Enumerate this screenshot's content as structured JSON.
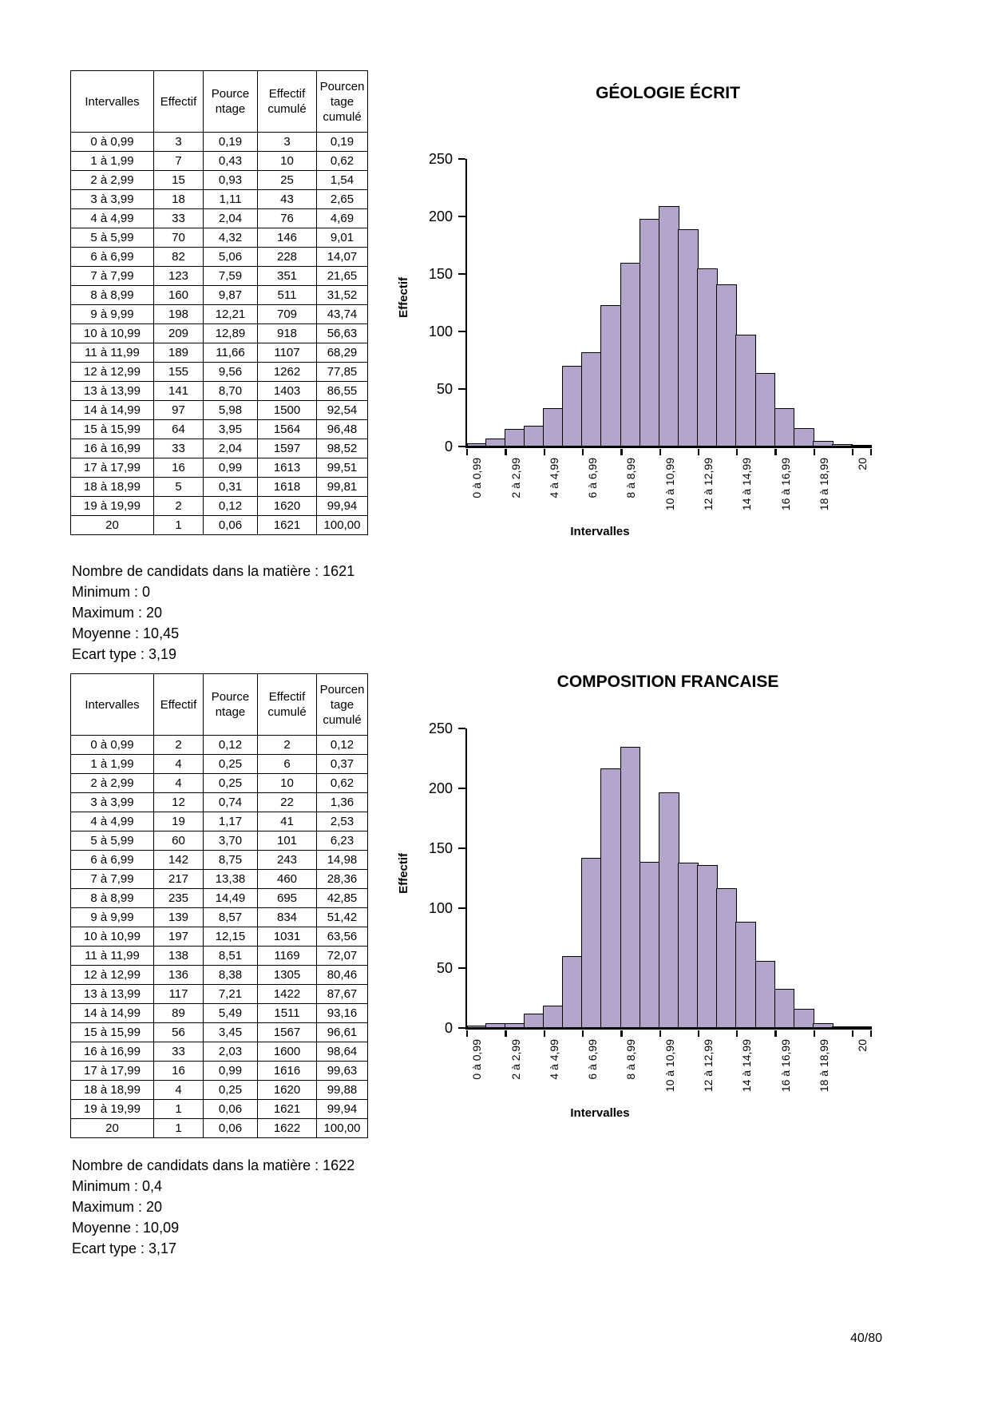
{
  "document": {
    "page_number": "40/80"
  },
  "tables": [
    {
      "headers": [
        "Intervalles",
        "Effectif",
        "Pource\nntage",
        "Effectif\ncumulé",
        "Pourcen\ntage\ncumulé"
      ],
      "rows": [
        [
          "0 à 0,99",
          "3",
          "0,19",
          "3",
          "0,19"
        ],
        [
          "1 à 1,99",
          "7",
          "0,43",
          "10",
          "0,62"
        ],
        [
          "2 à 2,99",
          "15",
          "0,93",
          "25",
          "1,54"
        ],
        [
          "3 à 3,99",
          "18",
          "1,11",
          "43",
          "2,65"
        ],
        [
          "4 à 4,99",
          "33",
          "2,04",
          "76",
          "4,69"
        ],
        [
          "5 à 5,99",
          "70",
          "4,32",
          "146",
          "9,01"
        ],
        [
          "6 à 6,99",
          "82",
          "5,06",
          "228",
          "14,07"
        ],
        [
          "7 à 7,99",
          "123",
          "7,59",
          "351",
          "21,65"
        ],
        [
          "8 à 8,99",
          "160",
          "9,87",
          "511",
          "31,52"
        ],
        [
          "9 à 9,99",
          "198",
          "12,21",
          "709",
          "43,74"
        ],
        [
          "10 à 10,99",
          "209",
          "12,89",
          "918",
          "56,63"
        ],
        [
          "11 à 11,99",
          "189",
          "11,66",
          "1107",
          "68,29"
        ],
        [
          "12 à 12,99",
          "155",
          "9,56",
          "1262",
          "77,85"
        ],
        [
          "13 à 13,99",
          "141",
          "8,70",
          "1403",
          "86,55"
        ],
        [
          "14 à 14,99",
          "97",
          "5,98",
          "1500",
          "92,54"
        ],
        [
          "15 à 15,99",
          "64",
          "3,95",
          "1564",
          "96,48"
        ],
        [
          "16 à 16,99",
          "33",
          "2,04",
          "1597",
          "98,52"
        ],
        [
          "17 à 17,99",
          "16",
          "0,99",
          "1613",
          "99,51"
        ],
        [
          "18 à 18,99",
          "5",
          "0,31",
          "1618",
          "99,81"
        ],
        [
          "19 à 19,99",
          "2",
          "0,12",
          "1620",
          "99,94"
        ],
        [
          "20",
          "1",
          "0,06",
          "1621",
          "100,00"
        ]
      ],
      "summary": [
        "Nombre de candidats dans la matière : 1621",
        "Minimum : 0",
        "Maximum : 20",
        "Moyenne : 10,45",
        "Ecart type : 3,19"
      ]
    },
    {
      "headers": [
        "Intervalles",
        "Effectif",
        "Pource\nntage",
        "Effectif\ncumulé",
        "Pourcen\ntage\ncumulé"
      ],
      "rows": [
        [
          "0 à 0,99",
          "2",
          "0,12",
          "2",
          "0,12"
        ],
        [
          "1 à 1,99",
          "4",
          "0,25",
          "6",
          "0,37"
        ],
        [
          "2 à 2,99",
          "4",
          "0,25",
          "10",
          "0,62"
        ],
        [
          "3 à 3,99",
          "12",
          "0,74",
          "22",
          "1,36"
        ],
        [
          "4 à 4,99",
          "19",
          "1,17",
          "41",
          "2,53"
        ],
        [
          "5 à 5,99",
          "60",
          "3,70",
          "101",
          "6,23"
        ],
        [
          "6 à 6,99",
          "142",
          "8,75",
          "243",
          "14,98"
        ],
        [
          "7 à 7,99",
          "217",
          "13,38",
          "460",
          "28,36"
        ],
        [
          "8 à 8,99",
          "235",
          "14,49",
          "695",
          "42,85"
        ],
        [
          "9 à 9,99",
          "139",
          "8,57",
          "834",
          "51,42"
        ],
        [
          "10 à 10,99",
          "197",
          "12,15",
          "1031",
          "63,56"
        ],
        [
          "11 à 11,99",
          "138",
          "8,51",
          "1169",
          "72,07"
        ],
        [
          "12 à 12,99",
          "136",
          "8,38",
          "1305",
          "80,46"
        ],
        [
          "13 à 13,99",
          "117",
          "7,21",
          "1422",
          "87,67"
        ],
        [
          "14 à 14,99",
          "89",
          "5,49",
          "1511",
          "93,16"
        ],
        [
          "15 à 15,99",
          "56",
          "3,45",
          "1567",
          "96,61"
        ],
        [
          "16 à 16,99",
          "33",
          "2,03",
          "1600",
          "98,64"
        ],
        [
          "17 à 17,99",
          "16",
          "0,99",
          "1616",
          "99,63"
        ],
        [
          "18 à 18,99",
          "4",
          "0,25",
          "1620",
          "99,88"
        ],
        [
          "19 à 19,99",
          "1",
          "0,06",
          "1621",
          "99,94"
        ],
        [
          "20",
          "1",
          "0,06",
          "1622",
          "100,00"
        ]
      ],
      "summary": [
        "Nombre de candidats dans la matière : 1622",
        "Minimum : 0,4",
        "Maximum : 20",
        "Moyenne : 10,09",
        "Ecart type : 3,17"
      ]
    }
  ],
  "chart_data": [
    {
      "type": "bar",
      "title": "GÉOLOGIE ÉCRIT",
      "xlabel": "Intervalles",
      "ylabel": "Effectif",
      "ylim": [
        0,
        250
      ],
      "yticks": [
        0,
        50,
        100,
        150,
        200,
        250
      ],
      "grid": false,
      "legend": "none",
      "categories": [
        "0 à 0,99",
        "1 à 1,99",
        "2 à 2,99",
        "3 à 3,99",
        "4 à 4,99",
        "5 à 5,99",
        "6 à 6,99",
        "7 à 7,99",
        "8 à 8,99",
        "9 à 9,99",
        "10 à 10,99",
        "11 à 11,99",
        "12 à 12,99",
        "13 à 13,99",
        "14 à 14,99",
        "15 à 15,99",
        "16 à 16,99",
        "17 à 17,99",
        "18 à 18,99",
        "19 à 19,99",
        "20"
      ],
      "values": [
        3,
        7,
        15,
        18,
        33,
        70,
        82,
        123,
        160,
        198,
        209,
        189,
        155,
        141,
        97,
        64,
        33,
        16,
        5,
        2,
        1
      ],
      "xtick_label_step": 2,
      "bar_color": "#b2a4ca",
      "bar_border_color": "#000000"
    },
    {
      "type": "bar",
      "title": "COMPOSITION FRANCAISE",
      "xlabel": "Intervalles",
      "ylabel": "Effectif",
      "ylim": [
        0,
        250
      ],
      "yticks": [
        0,
        50,
        100,
        150,
        200,
        250
      ],
      "grid": false,
      "legend": "none",
      "categories": [
        "0 à 0,99",
        "1 à 1,99",
        "2 à 2,99",
        "3 à 3,99",
        "4 à 4,99",
        "5 à 5,99",
        "6 à 6,99",
        "7 à 7,99",
        "8 à 8,99",
        "9 à 9,99",
        "10 à 10,99",
        "11 à 11,99",
        "12 à 12,99",
        "13 à 13,99",
        "14 à 14,99",
        "15 à 15,99",
        "16 à 16,99",
        "17 à 17,99",
        "18 à 18,99",
        "19 à 19,99",
        "20"
      ],
      "values": [
        2,
        4,
        4,
        12,
        19,
        60,
        142,
        217,
        235,
        139,
        197,
        138,
        136,
        117,
        89,
        56,
        33,
        16,
        4,
        1,
        1
      ],
      "xtick_label_step": 2,
      "bar_color": "#b2a4ca",
      "bar_border_color": "#000000"
    }
  ]
}
